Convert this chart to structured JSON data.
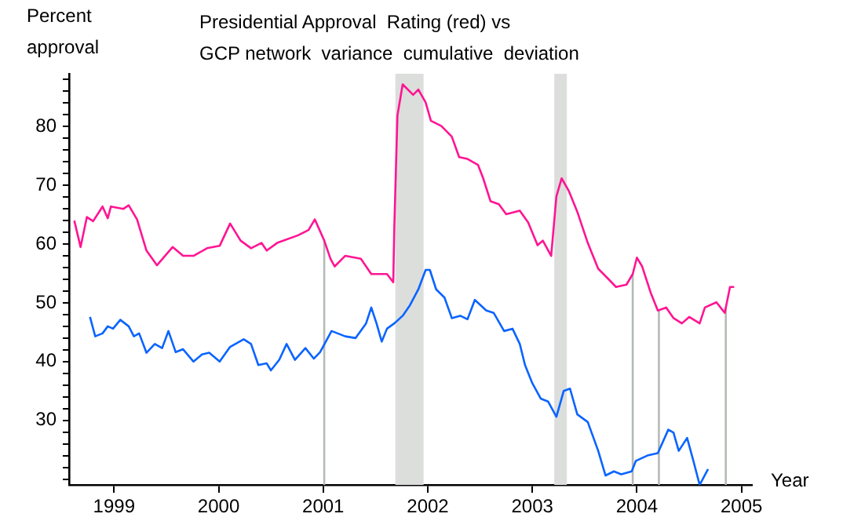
{
  "chart_data": {
    "type": "line",
    "title": "Presidential Approval  Rating (red) vs\nGCP network  variance  cumulative  deviation",
    "ylabel": "Percent\napproval",
    "xlabel": "Year",
    "xlim": [
      1998.57,
      2005.1
    ],
    "xticks": [
      {
        "value": 1999,
        "label": "1999"
      },
      {
        "value": 2000,
        "label": "2000"
      },
      {
        "value": 2001,
        "label": "2001"
      },
      {
        "value": 2002,
        "label": "2002"
      },
      {
        "value": 2003,
        "label": "2003"
      },
      {
        "value": 2004,
        "label": "2004"
      },
      {
        "value": 2005,
        "label": "2005"
      }
    ],
    "ylim": [
      19,
      89
    ],
    "yticks": [
      {
        "value": 20,
        "label": null
      },
      {
        "value": 22,
        "label": null
      },
      {
        "value": 24,
        "label": null
      },
      {
        "value": 26,
        "label": null
      },
      {
        "value": 28,
        "label": null
      },
      30,
      {
        "value": 32,
        "label": null
      },
      {
        "value": 34,
        "label": null
      },
      {
        "value": 36,
        "label": null
      },
      {
        "value": 38,
        "label": null
      },
      40,
      {
        "value": 42,
        "label": null
      },
      {
        "value": 44,
        "label": null
      },
      {
        "value": 46,
        "label": null
      },
      {
        "value": 48,
        "label": null
      },
      50,
      {
        "value": 52,
        "label": null
      },
      {
        "value": 54,
        "label": null
      },
      {
        "value": 56,
        "label": null
      },
      {
        "value": 58,
        "label": null
      },
      60,
      {
        "value": 62,
        "label": null
      },
      {
        "value": 64,
        "label": null
      },
      {
        "value": 66,
        "label": null
      },
      {
        "value": 68,
        "label": null
      },
      70,
      {
        "value": 72,
        "label": null
      },
      {
        "value": 74,
        "label": null
      },
      {
        "value": 76,
        "label": null
      },
      {
        "value": 78,
        "label": null
      },
      80,
      {
        "value": 82,
        "label": null
      },
      {
        "value": 84,
        "label": null
      },
      {
        "value": 86,
        "label": null
      },
      {
        "value": 88,
        "label": null
      }
    ],
    "grid": false,
    "legend": false,
    "marker": "none",
    "line_style": "solid",
    "bands": [
      {
        "axis": "x",
        "from": 2001.69,
        "to": 2001.96,
        "color": "#dcdedc"
      },
      {
        "axis": "x",
        "from": 2003.21,
        "to": 2003.33,
        "color": "#dcdedc"
      }
    ],
    "ref_lines": [
      {
        "axis": "x",
        "value": 2001.01,
        "color": "#b4bab4"
      },
      {
        "axis": "x",
        "value": 2003.96,
        "color": "#b4bab4"
      },
      {
        "axis": "x",
        "value": 2004.21,
        "color": "#b4bab4"
      },
      {
        "axis": "x",
        "value": 2004.85,
        "color": "#b4bab4"
      }
    ],
    "series": [
      {
        "color": "#ff1493",
        "x": [
          1998.62,
          1998.68,
          1998.74,
          1998.8,
          1998.89,
          1998.94,
          1998.97,
          1999.09,
          1999.14,
          1999.22,
          1999.31,
          1999.41,
          1999.56,
          1999.66,
          1999.76,
          1999.89,
          2000.01,
          2000.11,
          2000.21,
          2000.31,
          2000.41,
          2000.46,
          2000.56,
          2000.76,
          2000.86,
          2000.92,
          2001.01,
          2001.07,
          2001.11,
          2001.21,
          2001.36,
          2001.46,
          2001.61,
          2001.67,
          2001.68,
          2001.71,
          2001.76,
          2001.86,
          2001.91,
          2001.98,
          2002.03,
          2002.13,
          2002.23,
          2002.3,
          2002.38,
          2002.48,
          2002.53,
          2002.6,
          2002.68,
          2002.75,
          2002.88,
          2002.96,
          2003.05,
          2003.1,
          2003.18,
          2003.23,
          2003.28,
          2003.35,
          2003.43,
          2003.53,
          2003.6,
          2003.63,
          2003.73,
          2003.8,
          2003.9,
          2003.96,
          2004.0,
          2004.05,
          2004.13,
          2004.2,
          2004.28,
          2004.35,
          2004.43,
          2004.5,
          2004.6,
          2004.65,
          2004.76,
          2004.84,
          2004.89,
          2004.93
        ],
        "values": [
          64,
          59.5,
          64.6,
          63.9,
          66.4,
          64.4,
          66.4,
          66,
          66.6,
          64.2,
          58.9,
          56.4,
          59.5,
          58,
          58,
          59.3,
          59.7,
          63.5,
          60.6,
          59.3,
          60.2,
          58.9,
          60.2,
          61.5,
          62.4,
          64.2,
          60.6,
          57.5,
          56.2,
          58,
          57.5,
          54.9,
          54.9,
          53.5,
          62.8,
          81.9,
          87.2,
          85.4,
          86.3,
          84.1,
          81,
          80.1,
          78.3,
          74.8,
          74.5,
          73.5,
          71.2,
          67.3,
          66.8,
          65.1,
          65.7,
          63.7,
          59.8,
          60.6,
          58,
          68.1,
          71.2,
          69,
          65.5,
          60.2,
          57.1,
          55.8,
          54,
          52.7,
          53.1,
          54.9,
          57.7,
          56.2,
          51.8,
          48.7,
          49.2,
          47.4,
          46.5,
          47.6,
          46.5,
          49.2,
          50.1,
          48.3,
          52.7,
          52.7
        ]
      },
      {
        "color": "#0a64ff",
        "x": [
          1998.77,
          1998.82,
          1998.89,
          1998.94,
          1998.99,
          1999.06,
          1999.14,
          1999.19,
          1999.24,
          1999.31,
          1999.39,
          1999.46,
          1999.52,
          1999.59,
          1999.66,
          1999.76,
          1999.84,
          1999.91,
          2000.01,
          2000.11,
          2000.24,
          2000.31,
          2000.38,
          2000.46,
          2000.5,
          2000.58,
          2000.65,
          2000.73,
          2000.83,
          2000.91,
          2000.97,
          2001.08,
          2001.21,
          2001.31,
          2001.41,
          2001.46,
          2001.51,
          2001.56,
          2001.61,
          2001.68,
          2001.76,
          2001.83,
          2001.91,
          2001.98,
          2002.02,
          2002.08,
          2002.16,
          2002.23,
          2002.31,
          2002.38,
          2002.45,
          2002.56,
          2002.63,
          2002.73,
          2002.81,
          2002.88,
          2002.93,
          2003.0,
          2003.08,
          2003.15,
          2003.23,
          2003.3,
          2003.36,
          2003.43,
          2003.53,
          2003.63,
          2003.7,
          2003.78,
          2003.85,
          2003.95,
          2003.99,
          2004.1,
          2004.2,
          2004.3,
          2004.35,
          2004.4,
          2004.48,
          2004.54,
          2004.6,
          2004.68
        ],
        "values": [
          47.6,
          44.3,
          44.8,
          46,
          45.6,
          47.1,
          46,
          44.3,
          44.8,
          41.5,
          43,
          42.3,
          45.2,
          41.6,
          42.1,
          40,
          41.2,
          41.5,
          40,
          42.5,
          43.8,
          43,
          39.4,
          39.7,
          38.5,
          40.3,
          43,
          40.3,
          42.3,
          40.5,
          41.6,
          45.2,
          44.3,
          44,
          46.5,
          49.2,
          46.5,
          43.4,
          45.6,
          46.5,
          47.8,
          49.6,
          52.3,
          55.6,
          55.6,
          52.3,
          50.9,
          47.4,
          47.8,
          47.2,
          50.5,
          48.7,
          48.3,
          45.2,
          45.6,
          43,
          39.4,
          36.3,
          33.7,
          33.2,
          30.6,
          35,
          35.4,
          31,
          29.7,
          24.8,
          20.6,
          21.3,
          20.8,
          21.3,
          23.1,
          24,
          24.4,
          28.4,
          27.9,
          24.8,
          27,
          23.1,
          19,
          21.7
        ]
      }
    ]
  }
}
